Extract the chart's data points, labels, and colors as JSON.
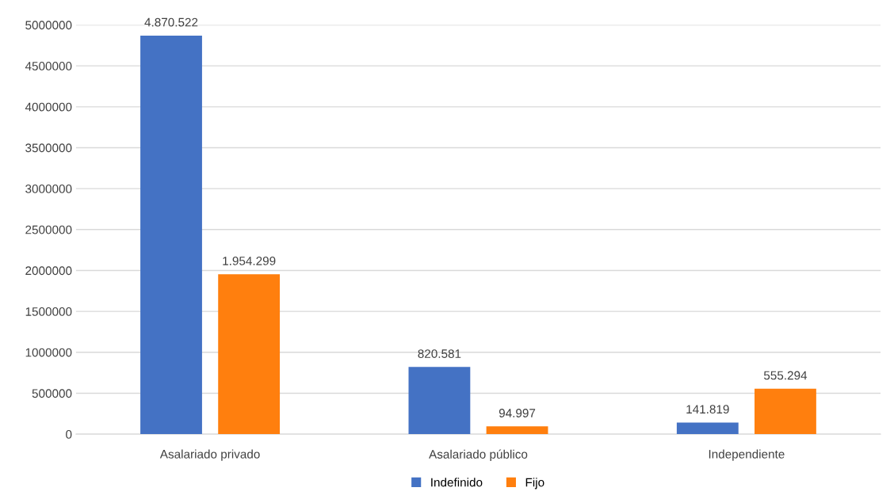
{
  "chart_data": {
    "type": "bar",
    "categories": [
      "Asalariado privado",
      "Asalariado público",
      "Independiente"
    ],
    "series": [
      {
        "name": "Indefinido",
        "color": "#4472c4",
        "values": [
          4870522,
          820581,
          141819
        ],
        "value_labels": [
          "4.870.522",
          "820.581",
          "141.819"
        ]
      },
      {
        "name": "Fijo",
        "color": "#ff7f0e",
        "values": [
          1954299,
          94997,
          555294
        ],
        "value_labels": [
          "1.954.299",
          "94.997",
          "555.294"
        ]
      }
    ],
    "ylim": [
      0,
      5000000
    ],
    "yticks": [
      0,
      500000,
      1000000,
      1500000,
      2000000,
      2500000,
      3000000,
      3500000,
      4000000,
      4500000,
      5000000
    ],
    "grid": "y",
    "legend": "bottom"
  }
}
